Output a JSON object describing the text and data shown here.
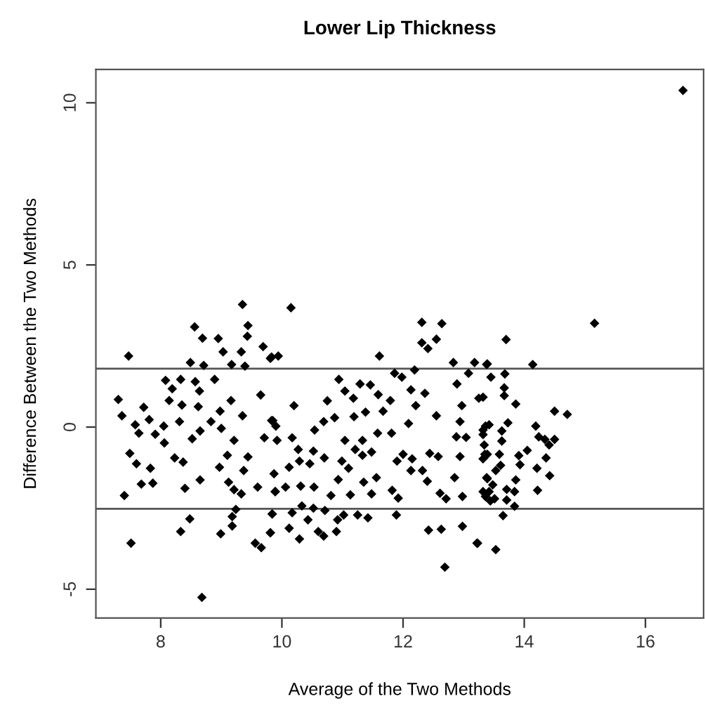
{
  "chart_data": {
    "type": "scatter",
    "title": "Lower Lip Thickness",
    "xlabel": "Average of the Two Methods",
    "ylabel": "Difference Between the Two Methods",
    "xlim": [
      6.93,
      16.96
    ],
    "ylim": [
      -5.89,
      11.03
    ],
    "xticks": [
      8,
      10,
      12,
      14,
      16
    ],
    "yticks": [
      -5,
      0,
      5,
      10
    ],
    "grid": false,
    "marker": "diamond",
    "ref_lines": [
      {
        "axis": "y",
        "value": 1.8,
        "color": "#555555"
      },
      {
        "axis": "y",
        "value": -2.52,
        "color": "#555555"
      }
    ],
    "series": [
      {
        "color": "#000000",
        "x": [
          9.35,
          8.56,
          9.44,
          8.69,
          8.95,
          9.43,
          9.69,
          7.47,
          9.03,
          9.33,
          8.49,
          8.71,
          9.17,
          9.83,
          9.39,
          8.08,
          8.33,
          8.57,
          8.89,
          8.19,
          8.64,
          7.3,
          8.14,
          8.35,
          9.16,
          9.65,
          7.72,
          8.62,
          8.98,
          7.36,
          7.81,
          7.58,
          8.31,
          8.05,
          8.83,
          9.35,
          9.85,
          7.64,
          7.91,
          8.65,
          9.0,
          8.06,
          8.52,
          9.21,
          9.71,
          7.49,
          8.23,
          9.1,
          9.44,
          7.6,
          8.37,
          8.97,
          7.83,
          9.37,
          7.68,
          7.87,
          8.4,
          8.65,
          9.12,
          9.89,
          9.21,
          9.33,
          9.6,
          7.4,
          9.24,
          8.48,
          9.18,
          9.84,
          8.33,
          8.99,
          9.18,
          9.81,
          7.51,
          9.56,
          9.66,
          8.68,
          10.15,
          12.31,
          12.64,
          12.31,
          12.55,
          12.41,
          9.81,
          9.94,
          11.61,
          12.83,
          13.18,
          13.38,
          11.86,
          10.94,
          12.19,
          11.98,
          11.29,
          11.46,
          12.89,
          13.08,
          11.04,
          10.75,
          10.2,
          11.18,
          11.59,
          12.13,
          12.36,
          12.21,
          11.79,
          13.25,
          12.97,
          9.83,
          9.9,
          10.87,
          10.69,
          11.19,
          11.38,
          11.67,
          12.09,
          12.55,
          12.94,
          13.36,
          10.54,
          10.17,
          9.92,
          11.04,
          11.33,
          11.58,
          11.81,
          12.88,
          13.04,
          13.32,
          10.27,
          10.52,
          10.7,
          11.21,
          11.33,
          11.48,
          12.0,
          12.15,
          12.44,
          12.58,
          12.94,
          13.35,
          10.29,
          10.46,
          10.99,
          10.12,
          11.1,
          11.9,
          12.13,
          12.32,
          9.87,
          10.06,
          10.31,
          10.53,
          10.93,
          11.35,
          11.56,
          12.4,
          12.85,
          13.38,
          9.89,
          10.81,
          11.13,
          11.48,
          11.82,
          11.92,
          12.61,
          12.71,
          12.98,
          13.42,
          10.33,
          10.52,
          10.71,
          10.17,
          9.84,
          11.25,
          11.42,
          11.89,
          11.02,
          10.92,
          10.43,
          10.12,
          10.6,
          10.69,
          10.9,
          9.81,
          10.29,
          12.42,
          12.63,
          12.98,
          13.22,
          12.69,
          15.16,
          13.7,
          13.39,
          14.14,
          13.45,
          13.68,
          13.67,
          13.67,
          13.32,
          13.86,
          14.5,
          14.71,
          14.19,
          13.42,
          13.73,
          13.32,
          13.63,
          14.24,
          14.34,
          14.5,
          14.41,
          13.63,
          13.34,
          14.05,
          13.39,
          13.59,
          13.91,
          14.36,
          13.32,
          13.61,
          13.93,
          14.21,
          13.53,
          14.42,
          13.86,
          13.39,
          13.48,
          14.22,
          13.71,
          13.84,
          13.32,
          13.36,
          13.44,
          13.51,
          13.71,
          13.84,
          13.65,
          13.23,
          13.53,
          16.62
        ],
        "values": [
          3.78,
          3.09,
          3.13,
          2.74,
          2.73,
          2.8,
          2.48,
          2.19,
          2.32,
          2.32,
          1.99,
          1.9,
          1.93,
          2.16,
          1.88,
          1.44,
          1.47,
          1.4,
          1.47,
          1.18,
          1.11,
          0.85,
          0.82,
          0.68,
          0.82,
          0.99,
          0.61,
          0.63,
          0.49,
          0.35,
          0.23,
          0.07,
          0.17,
          0.03,
          0.17,
          0.35,
          0.2,
          -0.19,
          -0.22,
          -0.12,
          -0.04,
          -0.49,
          -0.36,
          -0.41,
          -0.33,
          -0.81,
          -0.95,
          -0.87,
          -0.92,
          -1.13,
          -1.08,
          -1.24,
          -1.27,
          -1.34,
          -1.76,
          -1.73,
          -1.89,
          -1.63,
          -1.7,
          -1.99,
          -1.93,
          -2.06,
          -1.85,
          -2.11,
          -2.54,
          -2.83,
          -2.76,
          -2.68,
          -3.22,
          -3.29,
          -3.05,
          -3.26,
          -3.58,
          -3.58,
          -3.72,
          -5.25,
          3.68,
          3.23,
          3.19,
          2.6,
          2.71,
          2.42,
          2.12,
          2.19,
          2.19,
          1.99,
          1.99,
          1.93,
          1.66,
          1.47,
          1.76,
          1.54,
          1.33,
          1.3,
          1.33,
          1.66,
          1.11,
          0.81,
          0.66,
          0.89,
          1.0,
          1.15,
          1.04,
          0.66,
          0.82,
          0.89,
          0.66,
          0.2,
          0.03,
          0.29,
          0.17,
          0.32,
          0.46,
          0.49,
          0.11,
          0.35,
          0.17,
          0.03,
          -0.09,
          -0.33,
          -0.41,
          -0.41,
          -0.41,
          -0.19,
          -0.19,
          -0.3,
          -0.32,
          -0.23,
          -0.69,
          -0.74,
          -0.95,
          -0.69,
          -0.87,
          -0.77,
          -0.84,
          -0.98,
          -0.81,
          -0.91,
          -0.91,
          -0.84,
          -1.05,
          -1.13,
          -1.05,
          -1.24,
          -1.27,
          -1.05,
          -1.34,
          -1.34,
          -1.44,
          -1.85,
          -1.82,
          -1.85,
          -1.62,
          -1.7,
          -1.56,
          -1.67,
          -1.56,
          -1.56,
          -1.99,
          -2.11,
          -2.09,
          -2.06,
          -1.95,
          -2.19,
          -2.04,
          -2.21,
          -2.14,
          -1.99,
          -2.43,
          -2.5,
          -2.57,
          -2.64,
          -2.68,
          -2.71,
          -2.8,
          -2.71,
          -2.71,
          -2.86,
          -2.86,
          -3.12,
          -3.22,
          -3.36,
          -3.22,
          -3.26,
          -3.45,
          -3.18,
          -3.15,
          -3.06,
          -3.58,
          -4.32,
          3.2,
          2.7,
          1.95,
          1.93,
          1.54,
          1.64,
          1.21,
          0.97,
          0.92,
          0.71,
          0.49,
          0.39,
          0.03,
          0.07,
          0.13,
          -0.09,
          -0.12,
          -0.3,
          -0.38,
          -0.38,
          -0.55,
          -0.43,
          -0.55,
          -0.72,
          -0.84,
          -0.84,
          -0.88,
          -0.95,
          -0.98,
          -1.18,
          -1.16,
          -1.27,
          -1.34,
          -1.5,
          -1.63,
          -1.59,
          -1.78,
          -1.95,
          -1.92,
          -1.99,
          -1.99,
          -2.14,
          -2.28,
          -2.21,
          -2.25,
          -2.44,
          -2.73,
          -3.58,
          -3.78,
          10.38
        ]
      }
    ]
  }
}
